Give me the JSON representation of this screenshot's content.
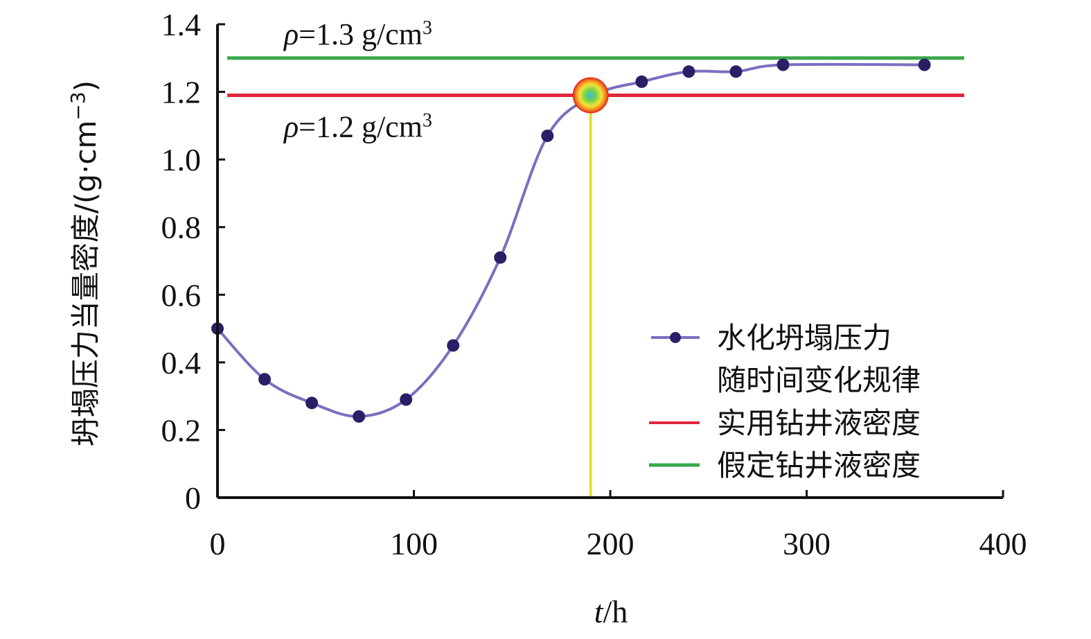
{
  "chart_data": {
    "type": "line",
    "xlabel_italic": "t",
    "xlabel_unit": "/h",
    "ylabel_main": "坍塌压力当量密度/(g·cm",
    "ylabel_exp": "−3",
    "ylabel_close": ")",
    "xlim": [
      0,
      400
    ],
    "ylim": [
      0,
      1.4
    ],
    "x_ticks": [
      "0",
      "100",
      "200",
      "300",
      "400"
    ],
    "y_ticks": [
      "0",
      "0.2",
      "0.4",
      "0.6",
      "0.8",
      "1.0",
      "1.2",
      "1.4"
    ],
    "series": [
      {
        "name_line1": "水化坍塌压力",
        "name_line2": "随时间变化规律",
        "color": "#7b6fc0",
        "marker_color": "#2a1f66",
        "x": [
          0,
          24,
          48,
          72,
          96,
          120,
          144,
          168,
          192,
          216,
          240,
          264,
          288,
          360
        ],
        "y": [
          0.5,
          0.35,
          0.28,
          0.24,
          0.29,
          0.45,
          0.71,
          1.07,
          1.19,
          1.23,
          1.26,
          1.26,
          1.28,
          1.28
        ]
      }
    ],
    "reference_lines": [
      {
        "name": "实用钻井液密度",
        "y": 1.19,
        "color": "#e0283a",
        "label_rho": "ρ",
        "label_text": "=1.2 g/cm",
        "label_sup": "3"
      },
      {
        "name": "假定钻井液密度",
        "y": 1.3,
        "color": "#3aa84a",
        "label_rho": "ρ",
        "label_text": "=1.3 g/cm",
        "label_sup": "3"
      }
    ],
    "intersection": {
      "x": 190,
      "y": 1.19,
      "vline_color": "#e6e02a"
    },
    "legend_position": "bottom-right"
  }
}
